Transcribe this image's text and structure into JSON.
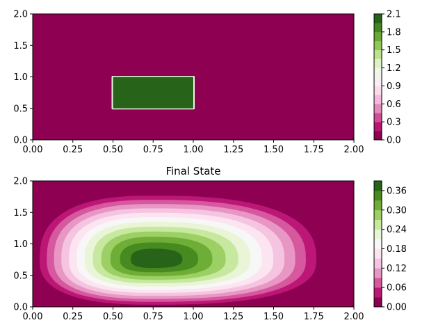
{
  "chart_data": [
    {
      "type": "heatmap",
      "title": "",
      "xlabel": "",
      "ylabel": "",
      "xlim": [
        0,
        2
      ],
      "ylim": [
        0,
        2
      ],
      "xticks": [
        "0.00",
        "0.25",
        "0.50",
        "0.75",
        "1.00",
        "1.25",
        "1.50",
        "1.75",
        "2.00"
      ],
      "yticks": [
        "0.0",
        "0.5",
        "1.0",
        "1.5",
        "2.0"
      ],
      "colorbar": {
        "min": 0.0,
        "max": 2.1,
        "levels": 14,
        "ticks": [
          "0.0",
          "0.3",
          "0.6",
          "0.9",
          "1.2",
          "1.5",
          "1.8",
          "2.1"
        ]
      },
      "background_value": 0.0,
      "region": {
        "x": [
          0.5,
          1.0
        ],
        "y": [
          0.5,
          1.0
        ],
        "value": 2.0
      },
      "colormap": "PiYG"
    },
    {
      "type": "heatmap",
      "title": "Final State",
      "xlabel": "",
      "ylabel": "",
      "xlim": [
        0,
        2
      ],
      "ylim": [
        0,
        2
      ],
      "xticks": [
        "0.00",
        "0.25",
        "0.50",
        "0.75",
        "1.00",
        "1.25",
        "1.50",
        "1.75",
        "2.00"
      ],
      "yticks": [
        "0.0",
        "0.5",
        "1.0",
        "1.5",
        "2.0"
      ],
      "colorbar": {
        "min": 0.0,
        "max": 0.39,
        "levels": 13,
        "ticks": [
          "0.00",
          "0.06",
          "0.12",
          "0.18",
          "0.24",
          "0.30",
          "0.36"
        ]
      },
      "peak": {
        "x": 0.75,
        "y": 0.75,
        "value": 0.37
      },
      "colormap": "PiYG"
    }
  ]
}
